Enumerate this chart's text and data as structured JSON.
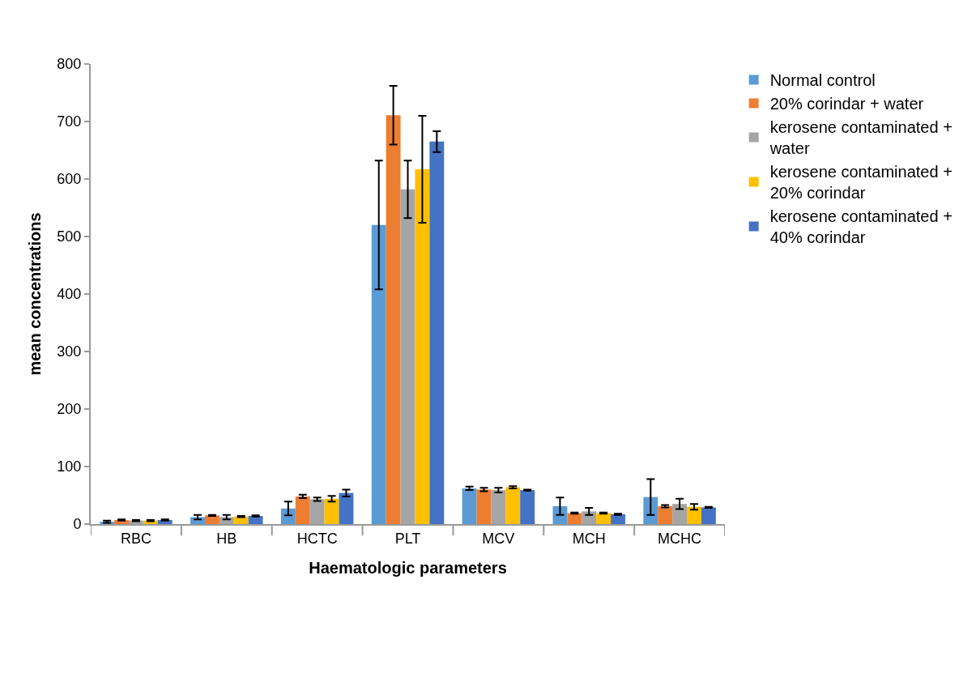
{
  "chart_data": {
    "type": "bar",
    "xlabel": "Haematologic parameters",
    "ylabel": "mean concentrations",
    "categories": [
      "RBC",
      "HB",
      "HCTC",
      "PLT",
      "MCV",
      "MCH",
      "MCHC"
    ],
    "ylim": [
      0,
      800
    ],
    "yticks": [
      0,
      100,
      200,
      300,
      400,
      500,
      600,
      700,
      800
    ],
    "grid": false,
    "legend": "right",
    "series": [
      {
        "name": "Normal control",
        "color": "#5b9bd5",
        "values": [
          4,
          12,
          27,
          520,
          62,
          31,
          47
        ],
        "errors": [
          2,
          4,
          12,
          112,
          3,
          15,
          31
        ]
      },
      {
        "name": "20% corindar + water",
        "color": "#ed7d31",
        "values": [
          7,
          15,
          48,
          711,
          60,
          19,
          31
        ],
        "errors": [
          1,
          1,
          3,
          51,
          3,
          1,
          2
        ]
      },
      {
        "name": "kerosene contaminated + water",
        "color": "#a5a5a5",
        "values": [
          6,
          12,
          43,
          582,
          59,
          22,
          35
        ],
        "errors": [
          1,
          4,
          3,
          50,
          4,
          6,
          9
        ]
      },
      {
        "name": "kerosene contaminated + 20% corindar",
        "color": "#ffc000",
        "values": [
          6,
          13,
          44,
          617,
          64,
          19,
          30
        ],
        "errors": [
          1,
          1,
          5,
          93,
          2,
          1,
          5
        ]
      },
      {
        "name": "kerosene contaminated + 40% corindar",
        "color": "#4472c4",
        "values": [
          7,
          14,
          54,
          665,
          59,
          17,
          29
        ],
        "errors": [
          1,
          1,
          6,
          18,
          1,
          1,
          1
        ]
      }
    ]
  }
}
